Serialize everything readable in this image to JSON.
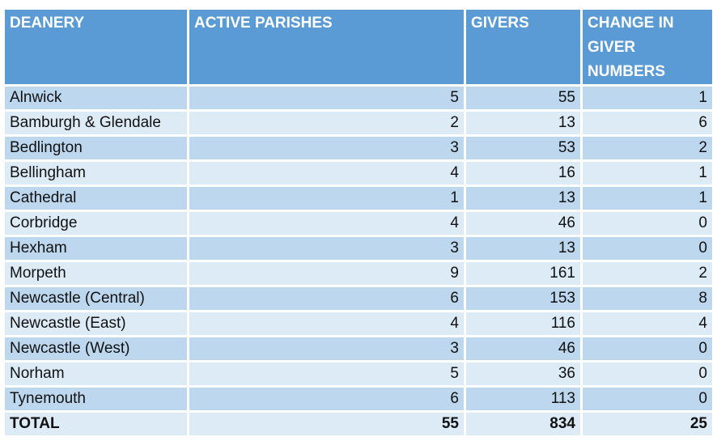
{
  "headers": [
    "DEANERY",
    "ACTIVE PARISHES",
    "GIVERS",
    "CHANGE IN GIVER NUMBERS"
  ],
  "rows": [
    [
      "Alnwick",
      "5",
      "55",
      "1"
    ],
    [
      "Bamburgh & Glendale",
      "2",
      "13",
      "6"
    ],
    [
      "Bedlington",
      "3",
      "53",
      "2"
    ],
    [
      "Bellingham",
      "4",
      "16",
      "1"
    ],
    [
      "Cathedral",
      "1",
      "13",
      "1"
    ],
    [
      "Corbridge",
      "4",
      "46",
      "0"
    ],
    [
      "Hexham",
      "3",
      "13",
      "0"
    ],
    [
      "Morpeth",
      "9",
      "161",
      "2"
    ],
    [
      "Newcastle (Central)",
      "6",
      "153",
      "8"
    ],
    [
      "Newcastle (East)",
      "4",
      "116",
      "4"
    ],
    [
      "Newcastle (West)",
      "3",
      "46",
      "0"
    ],
    [
      "Norham",
      "5",
      "36",
      "0"
    ],
    [
      "Tynemouth",
      "6",
      "113",
      "0"
    ]
  ],
  "total": [
    "TOTAL",
    "55",
    "834",
    "25"
  ],
  "colors": {
    "header_bg": "#5b9bd5",
    "row_dark": "#bdd7ee",
    "row_light": "#ddebf7",
    "header_text": "#ffffff"
  }
}
